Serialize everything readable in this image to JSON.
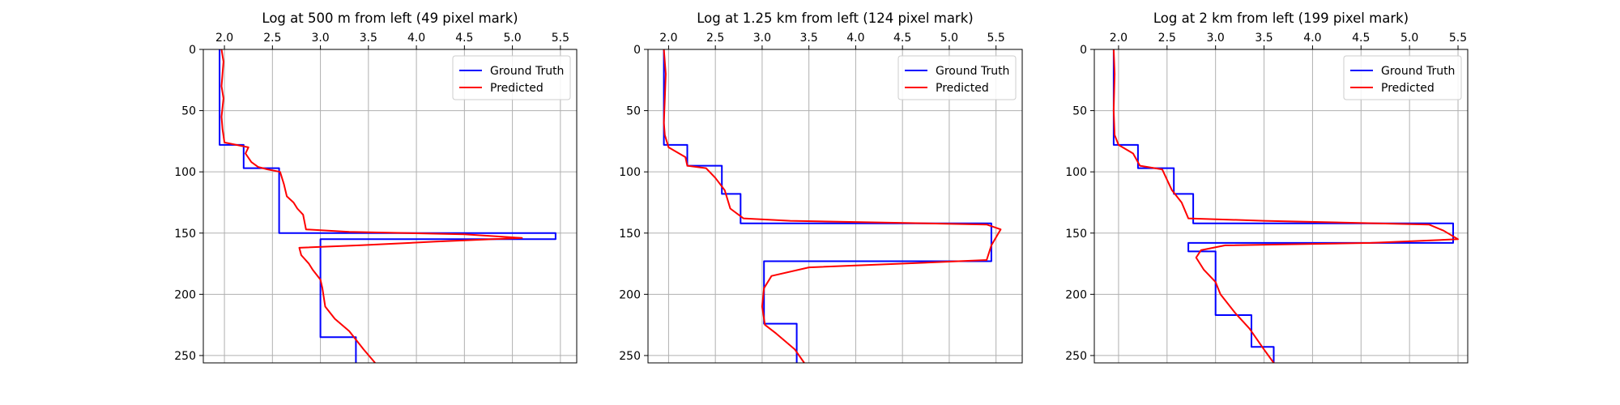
{
  "chart_data": [
    {
      "type": "line",
      "title": "Log at 500 m from left (49 pixel mark)",
      "xlim": [
        1.78,
        5.67
      ],
      "ylim": [
        256,
        0
      ],
      "xticks": [
        2.0,
        2.5,
        3.0,
        3.5,
        4.0,
        4.5,
        5.0,
        5.5
      ],
      "xtick_labels": [
        "2.0",
        "2.5",
        "3.0",
        "3.5",
        "4.0",
        "4.5",
        "5.0",
        "5.5"
      ],
      "yticks": [
        0,
        50,
        100,
        150,
        200,
        250
      ],
      "ytick_labels": [
        "0",
        "50",
        "100",
        "150",
        "200",
        "250"
      ],
      "x_axis_position": "top",
      "y_inverted": true,
      "grid": true,
      "legend_position": "top-right",
      "series": [
        {
          "name": "Ground Truth",
          "color": "#0000ff",
          "x": [
            1.95,
            1.95,
            2.2,
            2.2,
            2.57,
            2.57,
            5.45,
            5.45,
            3.0,
            3.0,
            3.37,
            3.37
          ],
          "y": [
            0,
            78,
            78,
            97,
            97,
            150,
            150,
            155,
            155,
            235,
            235,
            256
          ]
        },
        {
          "name": "Predicted",
          "color": "#ff0000",
          "x": [
            1.97,
            1.99,
            1.97,
            1.99,
            1.97,
            1.98,
            2.0,
            2.25,
            2.22,
            2.28,
            2.35,
            2.45,
            2.58,
            2.62,
            2.65,
            2.72,
            2.76,
            2.82,
            2.85,
            3.3,
            4.5,
            5.1,
            4.2,
            3.4,
            2.78,
            2.8,
            2.88,
            2.92,
            3.0,
            3.02,
            3.05,
            3.15,
            3.3,
            3.45,
            3.57
          ],
          "y": [
            0,
            10,
            30,
            40,
            55,
            65,
            76,
            80,
            85,
            92,
            96,
            98,
            100,
            110,
            120,
            125,
            130,
            135,
            147,
            149,
            151,
            154,
            157,
            160,
            162,
            168,
            175,
            180,
            188,
            195,
            210,
            220,
            230,
            245,
            256
          ]
        }
      ]
    },
    {
      "type": "line",
      "title": "Log at 1.25 km from left (124 pixel mark)",
      "xlim": [
        1.78,
        5.78
      ],
      "ylim": [
        256,
        0
      ],
      "xticks": [
        2.0,
        2.5,
        3.0,
        3.5,
        4.0,
        4.5,
        5.0,
        5.5
      ],
      "xtick_labels": [
        "2.0",
        "2.5",
        "3.0",
        "3.5",
        "4.0",
        "4.5",
        "5.0",
        "5.5"
      ],
      "yticks": [
        0,
        50,
        100,
        150,
        200,
        250
      ],
      "ytick_labels": [
        "0",
        "50",
        "100",
        "150",
        "200",
        "250"
      ],
      "x_axis_position": "top",
      "y_inverted": true,
      "grid": true,
      "legend_position": "top-right",
      "series": [
        {
          "name": "Ground Truth",
          "color": "#0000ff",
          "x": [
            1.95,
            1.95,
            2.2,
            2.2,
            2.57,
            2.57,
            2.77,
            2.77,
            5.45,
            5.45,
            3.02,
            3.02,
            3.37,
            3.37
          ],
          "y": [
            0,
            78,
            78,
            95,
            95,
            118,
            118,
            142,
            142,
            173,
            173,
            224,
            224,
            256
          ]
        },
        {
          "name": "Predicted",
          "color": "#ff0000",
          "x": [
            1.95,
            1.97,
            1.96,
            1.95,
            1.96,
            2.0,
            2.18,
            2.2,
            2.4,
            2.5,
            2.6,
            2.66,
            2.8,
            3.3,
            5.4,
            5.55,
            5.45,
            5.4,
            4.8,
            3.5,
            3.1,
            3.02,
            3.0,
            3.03,
            3.15,
            3.35,
            3.45
          ],
          "y": [
            0,
            20,
            40,
            60,
            70,
            80,
            88,
            95,
            97,
            105,
            115,
            130,
            138,
            140,
            143,
            147,
            160,
            172,
            174,
            178,
            185,
            195,
            210,
            225,
            232,
            245,
            256
          ]
        }
      ]
    },
    {
      "type": "line",
      "title": "Log at 2 km from left (199 pixel mark)",
      "xlim": [
        1.75,
        5.6
      ],
      "ylim": [
        256,
        0
      ],
      "xticks": [
        2.0,
        2.5,
        3.0,
        3.5,
        4.0,
        4.5,
        5.0,
        5.5
      ],
      "xtick_labels": [
        "2.0",
        "2.5",
        "3.0",
        "3.5",
        "4.0",
        "4.5",
        "5.0",
        "5.5"
      ],
      "yticks": [
        0,
        50,
        100,
        150,
        200,
        250
      ],
      "ytick_labels": [
        "0",
        "50",
        "100",
        "150",
        "200",
        "250"
      ],
      "x_axis_position": "top",
      "y_inverted": true,
      "grid": true,
      "legend_position": "top-right",
      "series": [
        {
          "name": "Ground Truth",
          "color": "#0000ff",
          "x": [
            1.95,
            1.95,
            2.2,
            2.2,
            2.57,
            2.57,
            2.77,
            2.77,
            5.45,
            5.45,
            2.72,
            2.72,
            3.0,
            3.0,
            3.37,
            3.37,
            3.6,
            3.6
          ],
          "y": [
            0,
            78,
            78,
            97,
            97,
            118,
            118,
            142,
            142,
            158,
            158,
            165,
            165,
            217,
            217,
            243,
            243,
            256
          ]
        },
        {
          "name": "Predicted",
          "color": "#ff0000",
          "x": [
            1.95,
            1.96,
            1.95,
            1.96,
            2.0,
            2.15,
            2.22,
            2.45,
            2.55,
            2.65,
            2.72,
            3.5,
            5.2,
            5.35,
            5.5,
            4.6,
            3.1,
            2.85,
            2.8,
            2.88,
            3.0,
            3.05,
            3.2,
            3.35,
            3.5,
            3.6
          ],
          "y": [
            0,
            20,
            50,
            70,
            78,
            85,
            95,
            98,
            115,
            125,
            138,
            140,
            143,
            148,
            155,
            158,
            160,
            164,
            170,
            180,
            190,
            200,
            215,
            228,
            245,
            256
          ]
        }
      ]
    }
  ]
}
